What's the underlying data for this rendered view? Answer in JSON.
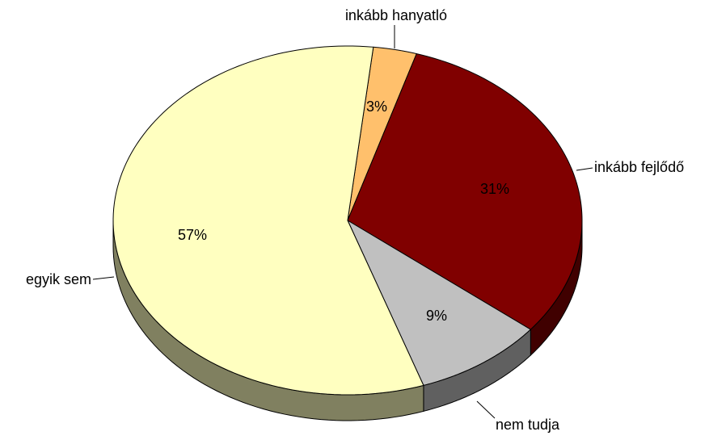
{
  "chart_data": {
    "type": "pie3d",
    "categories": [
      "inkább hanyatló",
      "inkább fejlődő",
      "nem tudja",
      "egyik sem"
    ],
    "values": [
      3,
      31,
      9,
      57
    ],
    "value_labels": [
      "3%",
      "31%",
      "9%",
      "57%"
    ],
    "colors": [
      "#ffc06c",
      "#800000",
      "#c0c0c0",
      "#ffffc0"
    ]
  }
}
